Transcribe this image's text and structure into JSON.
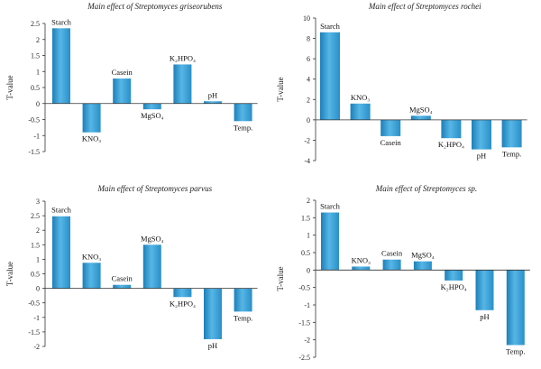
{
  "chart_data": [
    {
      "type": "bar",
      "title": "Main effect of Streptomyces griseorubens",
      "ylabel": "T-value",
      "categories": [
        "Starch",
        "KNO₃",
        "Casein",
        "MgSO₄",
        "K₂HPO₄",
        "pH",
        "Temp."
      ],
      "values": [
        2.35,
        -0.9,
        0.78,
        -0.18,
        1.22,
        0.07,
        -0.55
      ],
      "ylim": [
        -1.5,
        2.5
      ],
      "yticks": [
        "-1.5",
        "-1",
        "-0.5",
        "0",
        "0.5",
        "1",
        "1.5",
        "2",
        "2.5"
      ],
      "grid": false
    },
    {
      "type": "bar",
      "title": "Main effect of Streptomyces rochei",
      "ylabel": "T-value",
      "categories": [
        "Starch",
        "KNO₃",
        "Casein",
        "MgSO₄",
        "K₂HPO₄",
        "pH",
        "Temp."
      ],
      "values": [
        8.6,
        1.6,
        -1.6,
        0.4,
        -1.8,
        -2.9,
        -2.7
      ],
      "ylim": [
        -4,
        10
      ],
      "yticks": [
        "-4",
        "-2",
        "0",
        "2",
        "4",
        "6",
        "8",
        "10"
      ],
      "grid": false
    },
    {
      "type": "bar",
      "title": "Main effect of Streptomyces parvus",
      "ylabel": "T-value",
      "categories": [
        "Starch",
        "KNO₃",
        "Casein",
        "MgSO₄",
        "K₂HPO₄",
        "pH",
        "Temp."
      ],
      "values": [
        2.48,
        0.88,
        0.12,
        1.5,
        -0.3,
        -1.75,
        -0.8
      ],
      "ylim": [
        -2,
        3
      ],
      "yticks": [
        "-2",
        "-1.5",
        "-1",
        "-0.5",
        "0",
        "0.5",
        "1",
        "1.5",
        "2",
        "2.5",
        "3"
      ],
      "grid": false
    },
    {
      "type": "bar",
      "title": "Main effect of Streptomyces sp.",
      "ylabel": "T-value",
      "categories": [
        "Starch",
        "KNO₃",
        "Casein",
        "MgSO₄",
        "K₂HPO₄",
        "pH",
        "Temp."
      ],
      "values": [
        1.65,
        0.1,
        0.3,
        0.25,
        -0.3,
        -1.15,
        -2.15
      ],
      "ylim": [
        -2.5,
        2
      ],
      "yticks": [
        "-2.5",
        "-2",
        "-1.5",
        "-1",
        "-0.5",
        "0",
        "0.5",
        "1",
        "1.5",
        "2"
      ],
      "grid": false
    }
  ]
}
